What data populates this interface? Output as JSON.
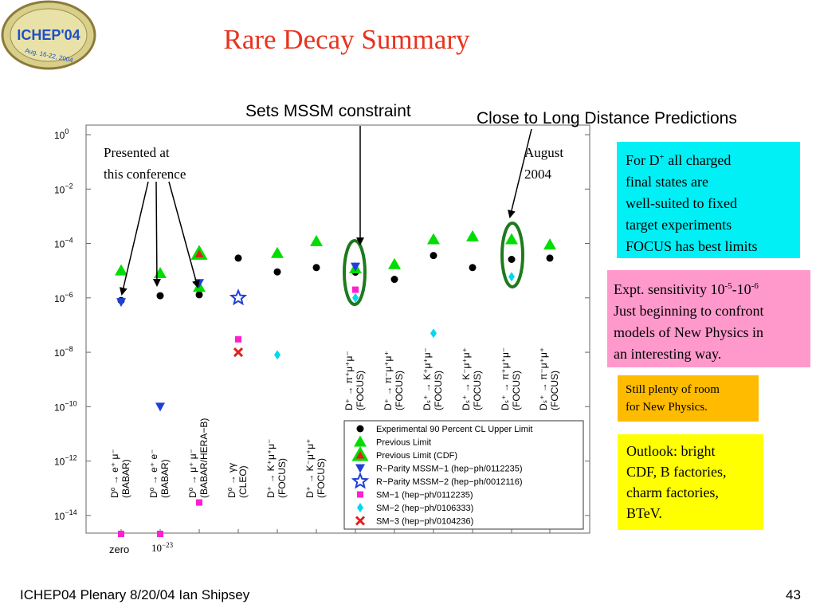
{
  "slide": {
    "title": "Rare Decay Summary",
    "logo_text": "ICHEP'04",
    "logo_subtext": "Aug. 16-22, 2004",
    "annotation_mssm": "Sets MSSM constraint",
    "annotation_ld": "Close to Long Distance Predictions",
    "box_dplus": [
      "For D",
      "all charged",
      "final states are",
      "well-suited to fixed",
      "target experiments",
      "FOCUS has best limits"
    ],
    "box_dplus_sup": "+",
    "box_sens_lines": [
      "Just beginning to confront",
      "models of New Physics in",
      "an interesting way."
    ],
    "box_sens_prefix": "Expt. sensitivity 10",
    "box_sens_exp1": "-5",
    "box_sens_dash": "-10",
    "box_sens_exp2": "-6",
    "box_room": [
      "Still plenty of room",
      "for New Physics."
    ],
    "box_outlook": [
      "Outlook: bright",
      "CDF, B factories,",
      "charm factories,",
      "BTeV."
    ],
    "footer": "ICHEP04 Plenary 8/20/04 Ian Shipsey",
    "page_number": "43",
    "colors": {
      "title": "#e8331e",
      "box_cyan": "#00f0f6",
      "box_pink": "#ff99cc",
      "box_orange": "#ffbb00",
      "box_yellow": "#ffff00",
      "ellipse": "#1e7a1e"
    }
  },
  "chart_data": {
    "type": "scatter",
    "y_scale": "log",
    "ylim": [
      1e-15,
      1
    ],
    "yticks": [
      {
        "base": "10",
        "exp": "0"
      },
      {
        "base": "10",
        "exp": "−2"
      },
      {
        "base": "10",
        "exp": "−4"
      },
      {
        "base": "10",
        "exp": "−6"
      },
      {
        "base": "10",
        "exp": "−8"
      },
      {
        "base": "10",
        "exp": "−10"
      },
      {
        "base": "10",
        "exp": "−12"
      },
      {
        "base": "10",
        "exp": "−14"
      }
    ],
    "inplot_labels": {
      "presented": [
        "Presented at",
        "this conference"
      ],
      "august": [
        "August",
        "2004"
      ],
      "zero": "zero",
      "tiny_base": "10",
      "tiny_exp": "−23"
    },
    "categories": [
      {
        "decay": "D⁰ → e⁺ μ⁻",
        "exp": "(BABAR)"
      },
      {
        "decay": "D⁰ → e⁺ e⁻",
        "exp": "(BABAR)"
      },
      {
        "decay": "D⁰ → μ⁺ μ⁻",
        "exp": "(BABAR/HERA−B)"
      },
      {
        "decay": "D⁰ → γγ",
        "exp": "(CLEO)"
      },
      {
        "decay": "D⁺ → K⁺μ⁺μ⁻",
        "exp": "(FOCUS)"
      },
      {
        "decay": "D⁺ → K⁻μ⁺μ⁺",
        "exp": "(FOCUS)"
      },
      {
        "decay": "D⁺ → π⁺μ⁺μ⁻",
        "exp": "(FOCUS)"
      },
      {
        "decay": "D⁺ → π⁻μ⁺μ⁺",
        "exp": "(FOCUS)"
      },
      {
        "decay": "Dₛ⁺ → K⁺μ⁺μ⁻",
        "exp": "(FOCUS)"
      },
      {
        "decay": "Dₛ⁺ → K⁻μ⁺μ⁺",
        "exp": "(FOCUS)"
      },
      {
        "decay": "Dₛ⁺ → π⁺μ⁺μ⁻",
        "exp": "(FOCUS)"
      },
      {
        "decay": "Dₛ⁺ → π⁻μ⁺μ⁺",
        "exp": "(FOCUS)"
      }
    ],
    "series": [
      {
        "name": "Experimental 90 Percent CL Upper Limit",
        "marker": "circle",
        "color": "#000000",
        "points": [
          [
            0,
            8e-07
          ],
          [
            1,
            1.2e-06
          ],
          [
            2,
            1.3e-06
          ],
          [
            3,
            2.9e-05
          ],
          [
            4,
            9e-06
          ],
          [
            5,
            1.3e-05
          ],
          [
            6,
            8.8e-06
          ],
          [
            7,
            4.8e-06
          ],
          [
            8,
            3.6e-05
          ],
          [
            9,
            1.3e-05
          ],
          [
            10,
            2.6e-05
          ],
          [
            11,
            2.9e-05
          ]
        ]
      },
      {
        "name": "Previous Limit",
        "marker": "triangle",
        "color": "#00dd00",
        "points": [
          [
            0,
            1e-05
          ],
          [
            1,
            8e-06
          ],
          [
            2,
            2.5e-06
          ],
          [
            4,
            4.4e-05
          ],
          [
            5,
            0.00012
          ],
          [
            6,
            1.2e-05
          ],
          [
            7,
            1.7e-05
          ],
          [
            8,
            0.00014
          ],
          [
            9,
            0.00018
          ],
          [
            10,
            0.00014
          ],
          [
            11,
            9e-05
          ]
        ]
      },
      {
        "name": "Previous Limit (CDF)",
        "marker": "triangle-outline",
        "color": "#00dd00",
        "points": [
          [
            2,
            4.2e-05
          ]
        ]
      },
      {
        "name": "R−Parity MSSM−1 (hep−ph/0112235)",
        "marker": "triangle-down",
        "color": "#1f3fd6",
        "points": [
          [
            0,
            7e-07
          ],
          [
            1,
            1e-10
          ],
          [
            2,
            3.5e-06
          ],
          [
            6,
            1.4e-05
          ]
        ]
      },
      {
        "name": "R−Parity MSSM−2 (hep−ph/0012116)",
        "marker": "star",
        "color": "#1f3fd6",
        "points": [
          [
            3,
            1e-06
          ]
        ]
      },
      {
        "name": "SM−1 (hep−ph/0112235)",
        "marker": "square",
        "color": "#ff1fd0",
        "points": [
          [
            0,
            1e-15
          ],
          [
            1,
            1e-15
          ],
          [
            2,
            3e-14
          ],
          [
            3,
            3e-08
          ],
          [
            6,
            2e-06
          ]
        ]
      },
      {
        "name": "SM−2 (hep−ph/0106333)",
        "marker": "diamond",
        "color": "#00d8f0",
        "points": [
          [
            4,
            8e-09
          ],
          [
            6,
            1e-06
          ],
          [
            8,
            5e-08
          ],
          [
            10,
            6e-06
          ]
        ]
      },
      {
        "name": "SM−3 (hep−ph/0104236)",
        "marker": "x",
        "color": "#e81c1c",
        "points": [
          [
            3,
            1e-08
          ]
        ]
      }
    ]
  }
}
